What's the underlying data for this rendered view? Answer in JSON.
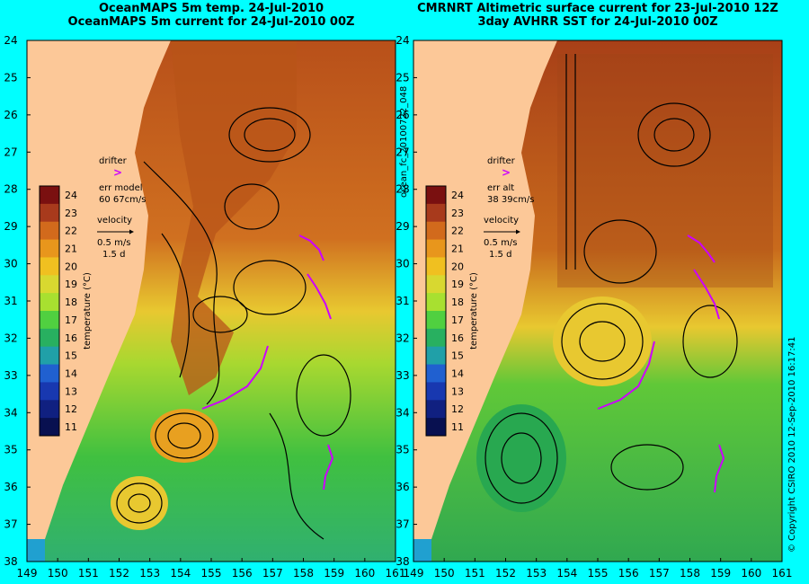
{
  "panels": [
    {
      "id": "left",
      "title_line1": "OceanMAPS 5m temp. 24-Jul-2010",
      "title_line2": "OceanMAPS 5m current for 24-Jul-2010 00Z",
      "legend": {
        "drifter_label": "drifter",
        "err_label": "err model",
        "err_value": "60 67cm/s",
        "velocity_label": "velocity",
        "velocity_value": "0.5 m/s",
        "velocity_time": "1.5 d"
      }
    },
    {
      "id": "right",
      "title_line1": "CMRNRT Altimetric surface current for 23-Jul-2010 12Z",
      "title_line2": "3day AVHRR SST for 24-Jul-2010 00Z",
      "legend": {
        "drifter_label": "drifter",
        "err_label": "err alt",
        "err_value": "38 39cm/s",
        "velocity_label": "velocity",
        "velocity_value": "0.5 m/s",
        "velocity_time": "1.5 d"
      }
    }
  ],
  "colorbar": {
    "label": "temperature (°C)",
    "ticks": [
      "24",
      "23",
      "22",
      "21",
      "20",
      "19",
      "18",
      "17",
      "16",
      "15",
      "14",
      "13",
      "12",
      "11"
    ],
    "colors": [
      "#7a1010",
      "#a83a1c",
      "#d26a1c",
      "#e8961c",
      "#f0c020",
      "#d8d830",
      "#a8e030",
      "#50d040",
      "#28b060",
      "#20a0a8",
      "#2060d0",
      "#1838b0",
      "#102080",
      "#081050"
    ]
  },
  "axes": {
    "y_ticks": [
      "24",
      "25",
      "26",
      "27",
      "28",
      "29",
      "30",
      "31",
      "32",
      "33",
      "34",
      "35",
      "36",
      "37",
      "38"
    ],
    "x_ticks": [
      "149",
      "150",
      "151",
      "152",
      "153",
      "154",
      "155",
      "156",
      "157",
      "158",
      "159",
      "160",
      "161"
    ]
  },
  "side_text": {
    "run_id": "ocean_fc_20100722_048",
    "copyright": "© Copyright CSIRO 2010   12-Sep-2010 16:17:41"
  },
  "colors": {
    "land": "#fcc898",
    "background": "#00ffff",
    "drifter": "#cc00ff",
    "warm": "#c8601c",
    "mid": "#e8c020",
    "cool": "#40c040"
  }
}
